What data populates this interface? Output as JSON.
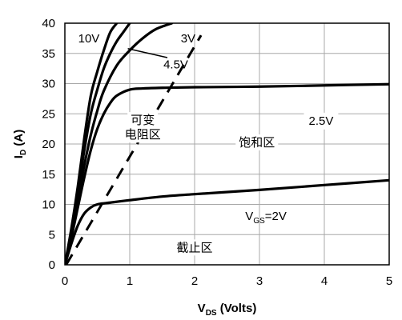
{
  "chart_data": {
    "type": "line",
    "xlabel": {
      "main": "V",
      "sub": "DS",
      "rest": " (Volts)"
    },
    "ylabel": {
      "main": "I",
      "sub": "D",
      "rest": " (A)"
    },
    "xlim": [
      0,
      5
    ],
    "ylim": [
      0,
      40
    ],
    "xticks": [
      0,
      1,
      2,
      3,
      4,
      5
    ],
    "yticks": [
      0,
      5,
      10,
      15,
      20,
      25,
      30,
      35,
      40
    ],
    "grid": true,
    "series": [
      {
        "name": "10V",
        "points": [
          [
            0,
            0
          ],
          [
            0.1,
            6
          ],
          [
            0.2,
            13
          ],
          [
            0.3,
            21
          ],
          [
            0.4,
            28
          ],
          [
            0.5,
            32
          ],
          [
            0.6,
            35.5
          ],
          [
            0.7,
            38.5
          ],
          [
            0.8,
            40
          ]
        ]
      },
      {
        "name": "4.5V",
        "points": [
          [
            0,
            0
          ],
          [
            0.1,
            5.5
          ],
          [
            0.2,
            12
          ],
          [
            0.3,
            19
          ],
          [
            0.4,
            25
          ],
          [
            0.5,
            29
          ],
          [
            0.6,
            32.5
          ],
          [
            0.7,
            35
          ],
          [
            0.8,
            37
          ],
          [
            0.9,
            38.5
          ],
          [
            1.0,
            40
          ]
        ]
      },
      {
        "name": "3V",
        "points": [
          [
            0,
            0
          ],
          [
            0.1,
            5
          ],
          [
            0.2,
            11
          ],
          [
            0.3,
            16.5
          ],
          [
            0.4,
            21.5
          ],
          [
            0.5,
            25.5
          ],
          [
            0.6,
            28.8
          ],
          [
            0.8,
            33
          ],
          [
            1.0,
            35.5
          ],
          [
            1.2,
            37.5
          ],
          [
            1.4,
            39
          ],
          [
            1.65,
            40
          ]
        ]
      },
      {
        "name": "2.5V",
        "points": [
          [
            0,
            0
          ],
          [
            0.1,
            4.5
          ],
          [
            0.2,
            9.5
          ],
          [
            0.3,
            14.5
          ],
          [
            0.4,
            19
          ],
          [
            0.5,
            22.5
          ],
          [
            0.6,
            25
          ],
          [
            0.7,
            26.8
          ],
          [
            0.8,
            28
          ],
          [
            1.0,
            29
          ],
          [
            1.2,
            29.2
          ],
          [
            1.5,
            29.3
          ],
          [
            2.0,
            29.4
          ],
          [
            3.0,
            29.5
          ],
          [
            4.0,
            29.7
          ],
          [
            5.0,
            29.9
          ]
        ]
      },
      {
        "name": "2V",
        "points": [
          [
            0,
            0
          ],
          [
            0.1,
            3.5
          ],
          [
            0.2,
            6.5
          ],
          [
            0.3,
            8.5
          ],
          [
            0.4,
            9.5
          ],
          [
            0.5,
            10
          ],
          [
            0.7,
            10.3
          ],
          [
            1.0,
            10.7
          ],
          [
            1.5,
            11.3
          ],
          [
            2.0,
            11.7
          ],
          [
            3.0,
            12.4
          ],
          [
            4.0,
            13.2
          ],
          [
            5.0,
            14
          ]
        ]
      }
    ],
    "boundary": {
      "points": [
        [
          0.02,
          0
        ],
        [
          2.1,
          38
        ]
      ],
      "style": "dashed"
    },
    "curve_labels": [
      {
        "text": "10V",
        "x": 0.37,
        "y": 36.8
      },
      {
        "text": "3V",
        "x": 1.9,
        "y": 36.8
      },
      {
        "text": "4.5V",
        "x": 1.71,
        "y": 32.5
      },
      {
        "text": "2.5V",
        "x": 3.95,
        "y": 23.2
      },
      {
        "text": "V",
        "sub": "GS",
        "rest": "=2V",
        "x": 3.1,
        "y": 7.4
      }
    ],
    "region_labels": [
      {
        "text": "可变",
        "x": 1.2,
        "y": 23.3
      },
      {
        "text": "电阻区",
        "x": 1.2,
        "y": 20.9
      },
      {
        "text": "饱和区",
        "x": 2.96,
        "y": 19.6
      },
      {
        "text": "截止区",
        "x": 2.0,
        "y": 2.2
      }
    ],
    "annotation_arrow": {
      "from": [
        1.58,
        34.3
      ],
      "to": [
        0.97,
        35.8
      ]
    }
  }
}
